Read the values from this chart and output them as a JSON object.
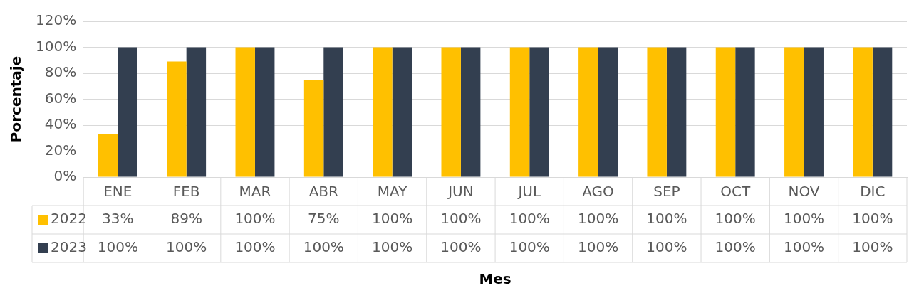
{
  "chart_data": {
    "type": "bar",
    "xlabel": "Mes",
    "ylabel": "Porcentaje",
    "categories": [
      "ENE",
      "FEB",
      "MAR",
      "ABR",
      "MAY",
      "JUN",
      "JUL",
      "AGO",
      "SEP",
      "OCT",
      "NOV",
      "DIC"
    ],
    "series": [
      {
        "name": "2022",
        "color": "#ffc000",
        "values": [
          33,
          89,
          100,
          75,
          100,
          100,
          100,
          100,
          100,
          100,
          100,
          100
        ],
        "value_labels": [
          "33%",
          "89%",
          "100%",
          "75%",
          "100%",
          "100%",
          "100%",
          "100%",
          "100%",
          "100%",
          "100%",
          "100%"
        ]
      },
      {
        "name": "2023",
        "color": "#333f50",
        "values": [
          100,
          100,
          100,
          100,
          100,
          100,
          100,
          100,
          100,
          100,
          100,
          100
        ],
        "value_labels": [
          "100%",
          "100%",
          "100%",
          "100%",
          "100%",
          "100%",
          "100%",
          "100%",
          "100%",
          "100%",
          "100%",
          "100%"
        ]
      }
    ],
    "ylim": [
      0,
      120
    ],
    "yticks": [
      {
        "value": 0,
        "label": "0%"
      },
      {
        "value": 20,
        "label": "20%"
      },
      {
        "value": 40,
        "label": "40%"
      },
      {
        "value": 60,
        "label": "60%"
      },
      {
        "value": 80,
        "label": "80%"
      },
      {
        "value": 100,
        "label": "100%"
      },
      {
        "value": 120,
        "label": "120%"
      }
    ],
    "grid": "y",
    "legend": "bottom left"
  }
}
